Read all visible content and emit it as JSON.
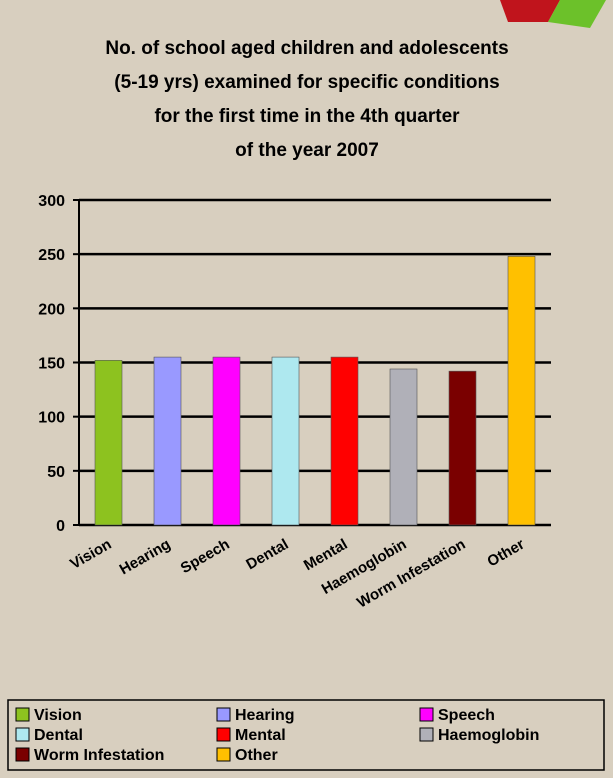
{
  "chart_data": {
    "type": "bar",
    "title": [
      "No. of school aged children and adolescents",
      "(5-19 yrs) examined for specific conditions",
      "for the first time in the  4th quarter",
      "of the year 2007"
    ],
    "categories": [
      "Vision",
      "Hearing",
      "Speech",
      "Dental",
      "Mental",
      "Haemoglobin",
      "Worm Infestation",
      "Other"
    ],
    "values": [
      152,
      155,
      155,
      155,
      155,
      144,
      142,
      248
    ],
    "colors": [
      "#8dc21f",
      "#9999ff",
      "#ff00ff",
      "#aee8ef",
      "#ff0000",
      "#b0b0b8",
      "#7a0000",
      "#ffc000"
    ],
    "ylim": [
      0,
      300
    ],
    "yticks": [
      0,
      50,
      100,
      150,
      200,
      250,
      300
    ],
    "grid": true,
    "legend": "bottom"
  }
}
